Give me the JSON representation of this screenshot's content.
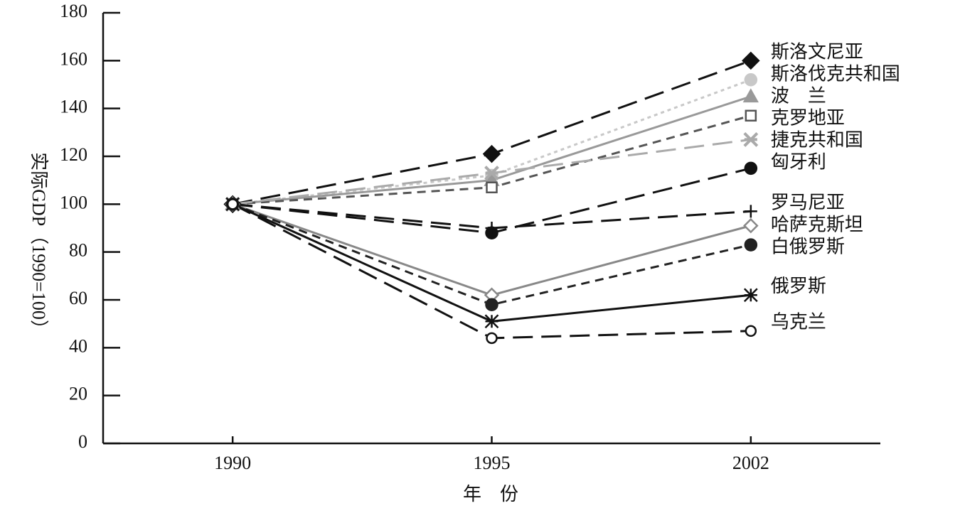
{
  "chart_data": {
    "type": "line",
    "y_label": "实际GDP（1990=100）",
    "x_label": "年　份",
    "categories": [
      "1990",
      "1995",
      "2002"
    ],
    "ylim": [
      0,
      180
    ],
    "yticks": [
      0,
      20,
      40,
      60,
      80,
      100,
      120,
      140,
      160,
      180
    ],
    "series": [
      {
        "name": "斯洛文尼亚",
        "color": "#111111",
        "dash": "long",
        "marker": "diamond-filled",
        "values": [
          100,
          121,
          160
        ]
      },
      {
        "name": "斯洛伐克共和国",
        "color": "#c8c8c8",
        "dash": "dot",
        "marker": "circle-filled",
        "values": [
          100,
          112,
          152
        ]
      },
      {
        "name": "波　兰",
        "color": "#999999",
        "dash": "solid",
        "marker": "triangle",
        "values": [
          100,
          110,
          145
        ]
      },
      {
        "name": "克罗地亚",
        "color": "#555555",
        "dash": "short",
        "marker": "square",
        "values": [
          100,
          107,
          137
        ]
      },
      {
        "name": "捷克共和国",
        "color": "#aaaaaa",
        "dash": "long",
        "marker": "star",
        "values": [
          100,
          113,
          127
        ]
      },
      {
        "name": "匈牙利",
        "color": "#111111",
        "dash": "long",
        "marker": "circle-filled",
        "values": [
          100,
          88,
          115
        ]
      },
      {
        "name": "罗马尼亚",
        "color": "#111111",
        "dash": "long",
        "marker": "plus",
        "values": [
          100,
          90,
          97
        ]
      },
      {
        "name": "哈萨克斯坦",
        "color": "#888888",
        "dash": "solid",
        "marker": "diamond-open",
        "values": [
          100,
          62,
          91
        ]
      },
      {
        "name": "白俄罗斯",
        "color": "#222222",
        "dash": "short",
        "marker": "circle-filled",
        "values": [
          100,
          58,
          83
        ]
      },
      {
        "name": "俄罗斯",
        "color": "#111111",
        "dash": "solid",
        "marker": "asterisk",
        "values": [
          100,
          51,
          62
        ]
      },
      {
        "name": "乌克兰",
        "color": "#111111",
        "dash": "long",
        "marker": "circle-open",
        "values": [
          100,
          44,
          47
        ]
      }
    ]
  }
}
